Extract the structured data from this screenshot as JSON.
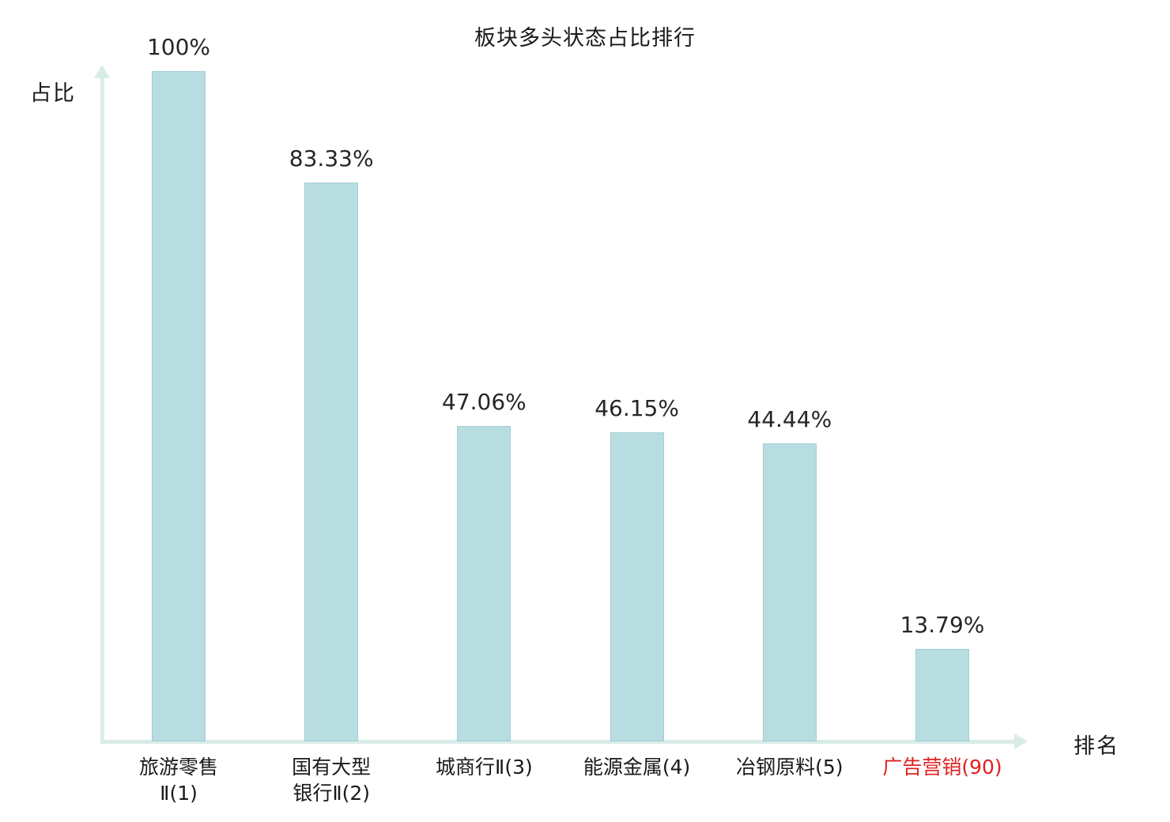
{
  "chart_data": {
    "type": "bar",
    "title": "板块多头状态占比排行",
    "ylabel": "占比",
    "xlabel": "排名",
    "ylim": [
      0,
      100
    ],
    "grid": false,
    "legend_position": "none",
    "categories": [
      "旅游零售Ⅱ(1)",
      "国有大型银行Ⅱ(2)",
      "城商行Ⅱ(3)",
      "能源金属(4)",
      "冶钢原料(5)",
      "广告营销(90)"
    ],
    "category_lines": [
      [
        "旅游零售",
        "Ⅱ(1)"
      ],
      [
        "国有大型",
        "银行Ⅱ(2)"
      ],
      [
        "城商行Ⅱ(3)"
      ],
      [
        "能源金属(4)"
      ],
      [
        "冶钢原料(5)"
      ],
      [
        "广告营销(90)"
      ]
    ],
    "values": [
      100,
      83.33,
      47.06,
      46.15,
      44.44,
      13.79
    ],
    "value_labels": [
      "100%",
      "83.33%",
      "47.06%",
      "46.15%",
      "44.44%",
      "13.79%"
    ],
    "highlight_index": 5,
    "colors": {
      "bar_fill": "#b7dde1",
      "bar_border": "#a2ced4",
      "axis": "#d9ece8",
      "text": "#1a1a1a",
      "highlight_text": "#e02020"
    }
  }
}
